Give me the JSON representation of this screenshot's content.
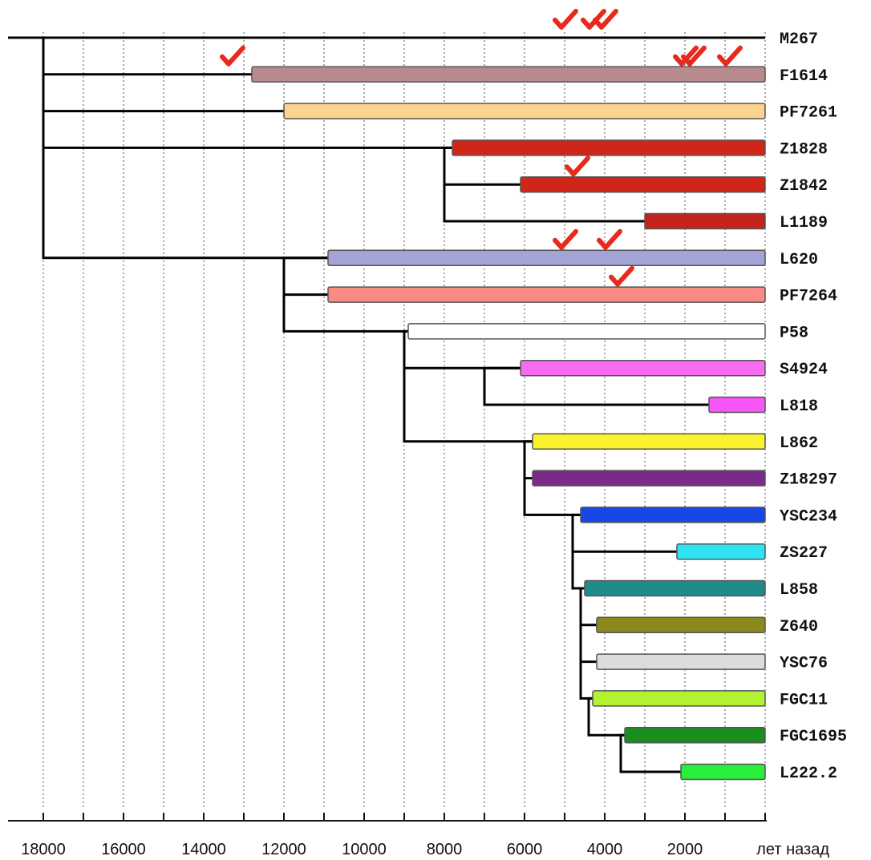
{
  "chart_data": {
    "type": "tree",
    "x_axis": {
      "unit_label": "лет назад",
      "ticks": [
        "18000",
        "16000",
        "14000",
        "12000",
        "10000",
        "8000",
        "6000",
        "4000",
        "2000"
      ],
      "tick_values": [
        18000,
        16000,
        14000,
        12000,
        10000,
        8000,
        6000,
        4000,
        2000
      ],
      "min": 0,
      "max": 18000,
      "gridline_step": 1000,
      "grid": true
    },
    "branches": [
      {
        "name": "M267",
        "start": 18000,
        "color": null
      },
      {
        "name": "F1614",
        "start": 12800,
        "color": "#b98a8d"
      },
      {
        "name": "PF7261",
        "start": 12000,
        "color": "#fcd38e"
      },
      {
        "name": "Z1828",
        "start": 7800,
        "color": "#d0261a"
      },
      {
        "name": "Z1842",
        "start": 6100,
        "color": "#d0261a"
      },
      {
        "name": "L1189",
        "start": 3000,
        "color": "#c4231c"
      },
      {
        "name": "L620",
        "start": 10900,
        "color": "#a3a3d5"
      },
      {
        "name": "PF7264",
        "start": 10900,
        "color": "#fa8a84"
      },
      {
        "name": "P58",
        "start": 8900,
        "color": "#ffffff"
      },
      {
        "name": "S4924",
        "start": 6100,
        "color": "#f56cf0"
      },
      {
        "name": "L818",
        "start": 1400,
        "color": "#f556f5"
      },
      {
        "name": "L862",
        "start": 5800,
        "color": "#faf22c"
      },
      {
        "name": "Z18297",
        "start": 5800,
        "color": "#7a2a88"
      },
      {
        "name": "YSC234",
        "start": 4600,
        "color": "#1747e6"
      },
      {
        "name": "ZS227",
        "start": 2200,
        "color": "#2fe3f2"
      },
      {
        "name": "L858",
        "start": 4500,
        "color": "#1f8c8c"
      },
      {
        "name": "Z640",
        "start": 4200,
        "color": "#8c8a1e"
      },
      {
        "name": "YSC76",
        "start": 4200,
        "color": "#dcdcdc"
      },
      {
        "name": "FGC11",
        "start": 4300,
        "color": "#b3f233"
      },
      {
        "name": "FGC1695",
        "start": 3500,
        "color": "#188f1c"
      },
      {
        "name": "L222.2",
        "start": 2100,
        "color": "#27ef3a"
      }
    ],
    "connectors": [
      {
        "x": 18000,
        "children": [
          "M267",
          "F1614",
          "PF7261",
          "Z1828",
          "L620"
        ]
      },
      {
        "x": 8000,
        "children": [
          "Z1828",
          "Z1842",
          "L1189"
        ]
      },
      {
        "x": 12000,
        "children": [
          "L620",
          "PF7264",
          "P58"
        ]
      },
      {
        "x": 9000,
        "children": [
          "P58",
          "S4924",
          "L862"
        ]
      },
      {
        "x": 7000,
        "children": [
          "S4924",
          "L818"
        ]
      },
      {
        "x": 6000,
        "children": [
          "L862",
          "Z18297",
          "YSC234"
        ]
      },
      {
        "x": 4800,
        "children": [
          "YSC234",
          "ZS227",
          "L858"
        ]
      },
      {
        "x": 4600,
        "children": [
          "L858",
          "Z640",
          "YSC76",
          "FGC11"
        ]
      },
      {
        "x": 4400,
        "children": [
          "FGC11",
          "FGC1695"
        ]
      },
      {
        "x": 3600,
        "children": [
          "FGC1695",
          "L222.2"
        ]
      }
    ],
    "check_marks": [
      {
        "row": "M267",
        "x": 5000
      },
      {
        "row": "M267",
        "x": 4300
      },
      {
        "row": "M267",
        "x": 4000
      },
      {
        "row": "F1614",
        "x": 13300
      },
      {
        "row": "F1614",
        "x": 2000
      },
      {
        "row": "F1614",
        "x": 1800
      },
      {
        "row": "F1614",
        "x": 900
      },
      {
        "row": "Z1842",
        "x": 4700
      },
      {
        "row": "L620",
        "x": 5000
      },
      {
        "row": "L620",
        "x": 3900
      },
      {
        "row": "PF7264",
        "x": 3600
      }
    ],
    "check_color": "#e8291c"
  }
}
